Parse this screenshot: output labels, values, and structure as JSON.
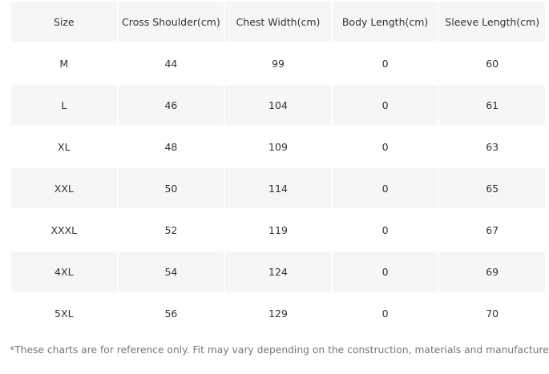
{
  "table": {
    "headers": [
      "Size",
      "Cross Shoulder(cm)",
      "Chest Width(cm)",
      "Body Length(cm)",
      "Sleeve Length(cm)"
    ],
    "rows": [
      [
        "M",
        "44",
        "99",
        "0",
        "60"
      ],
      [
        "L",
        "46",
        "104",
        "0",
        "61"
      ],
      [
        "XL",
        "48",
        "109",
        "0",
        "63"
      ],
      [
        "XXL",
        "50",
        "114",
        "0",
        "65"
      ],
      [
        "XXXL",
        "52",
        "119",
        "0",
        "67"
      ],
      [
        "4XL",
        "54",
        "124",
        "0",
        "69"
      ],
      [
        "5XL",
        "56",
        "129",
        "0",
        "70"
      ]
    ]
  },
  "footnote": "*These charts are for reference only. Fit may vary depending on the construction, materials and manufacturer.",
  "colors": {
    "shaded_row": "#f6f6f6",
    "text": "#333333",
    "footnote_text": "#777777"
  }
}
